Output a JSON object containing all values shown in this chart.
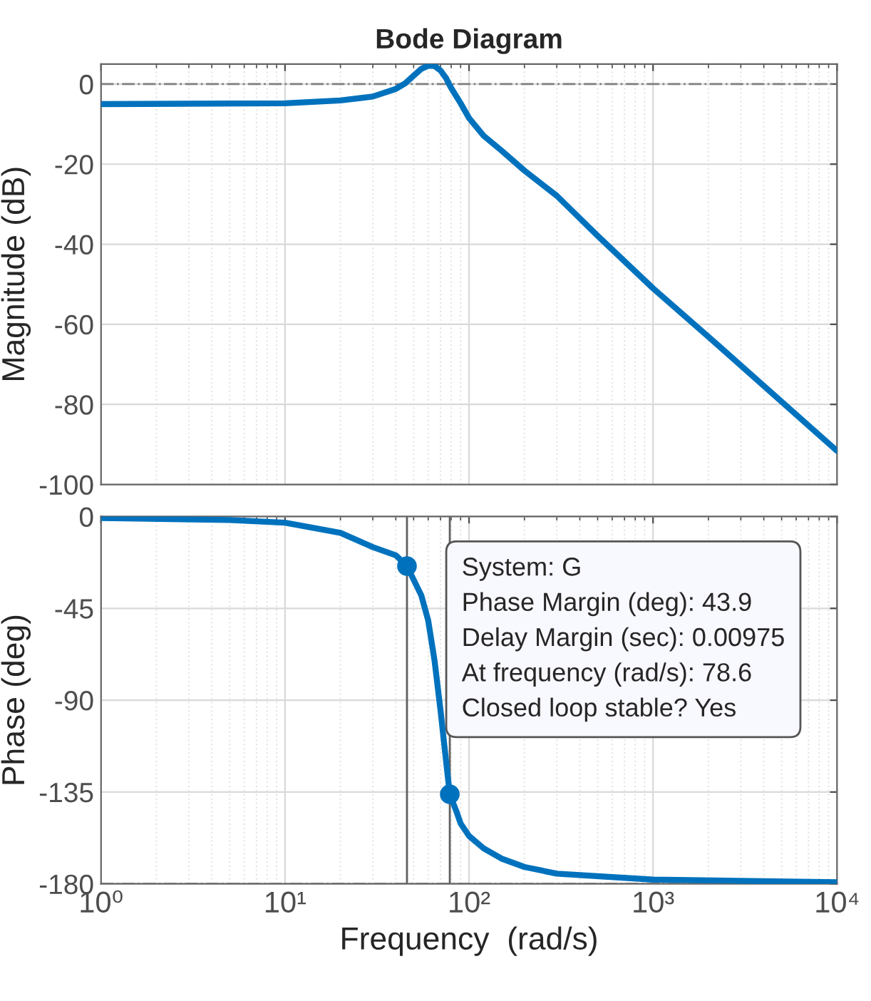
{
  "chart_data": [
    {
      "type": "line",
      "title": "Bode Diagram",
      "ylabel": "Magnitude (dB)",
      "xlim": [
        1,
        10000
      ],
      "ylim": [
        -100,
        5
      ],
      "yticks": [
        -100,
        -80,
        -60,
        -40,
        -20,
        0
      ],
      "log": "x",
      "grid": true,
      "tick_labels": "y",
      "series": [
        {
          "color": "#0072bd",
          "x": [
            1,
            10,
            20,
            30,
            40,
            45,
            50,
            55,
            60,
            65,
            70,
            75,
            80,
            90,
            100,
            120,
            150,
            200,
            300,
            500,
            1000,
            2000,
            10000
          ],
          "values": [
            -5,
            -4.8,
            -4.1,
            -3.1,
            -1.2,
            0.2,
            2.1,
            3.8,
            4.6,
            4.5,
            3.4,
            1.5,
            -1,
            -4.8,
            -8.5,
            -12.9,
            -16.6,
            -21.6,
            -27.9,
            -37.9,
            -51,
            -63.1,
            -91.6
          ]
        }
      ],
      "ref_lines": [
        {
          "axis": "y",
          "value": 0,
          "color": "#808080",
          "line_style": "dashdot"
        }
      ]
    },
    {
      "type": "line",
      "xlabel": "Frequency  (rad/s)",
      "ylabel": "Phase (deg)",
      "xlim": [
        1,
        10000
      ],
      "xticks": [
        {
          "value": 1,
          "label": "10⁰"
        },
        {
          "value": 10,
          "label": "10¹"
        },
        {
          "value": 100,
          "label": "10²"
        },
        {
          "value": 1000,
          "label": "10³"
        },
        {
          "value": 10000,
          "label": "10⁴"
        }
      ],
      "ylim": [
        -180,
        0
      ],
      "yticks": [
        -180,
        -135,
        -90,
        -45,
        0
      ],
      "log": "x",
      "grid": true,
      "series": [
        {
          "color": "#0072bd",
          "x": [
            1,
            5,
            10,
            20,
            30,
            40,
            46,
            55,
            60,
            65,
            70,
            75,
            78.6,
            85,
            90,
            100,
            120,
            150,
            200,
            300,
            1000,
            10000
          ],
          "values": [
            -0.7,
            -1.7,
            -3,
            -8,
            -15,
            -19,
            -24.3,
            -38.6,
            -51,
            -70.8,
            -95,
            -119.8,
            -136.1,
            -144,
            -150.4,
            -156.5,
            -162.6,
            -167.6,
            -171.7,
            -175,
            -177.9,
            -179.2
          ]
        },
        {
          "type": "scatter",
          "marker": "circle",
          "color": "#0072bd",
          "x": [
            46,
            78.6
          ],
          "values": [
            -24.3,
            -136.1
          ]
        }
      ],
      "ref_lines": [
        {
          "axis": "y",
          "value": -180,
          "color": "#808080",
          "line_style": "dashdot"
        },
        {
          "axis": "x",
          "value": 46,
          "color": "#606060",
          "line_style": "solid"
        },
        {
          "axis": "x",
          "value": 78.6,
          "color": "#606060",
          "line_style": "solid"
        }
      ],
      "annotations": [
        "System: G\nPhase Margin (deg): 43.9\nDelay Margin (sec): 0.00975\nAt frequency (rad/s): 78.6\nClosed loop stable? Yes"
      ]
    }
  ]
}
